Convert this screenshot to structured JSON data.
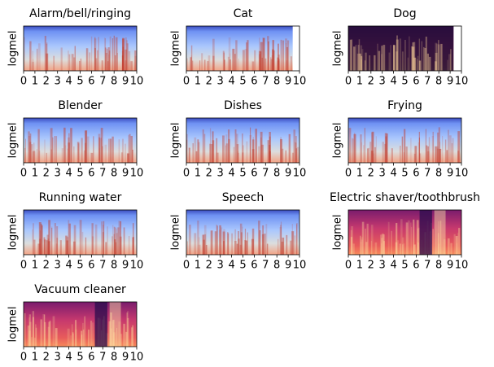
{
  "chart_data": [
    {
      "type": "spectrogram",
      "title": "Alarm/bell/ringing",
      "ylabel": "logmel",
      "xlim": [
        0,
        10
      ],
      "xticks": [
        0,
        1,
        2,
        3,
        4,
        5,
        6,
        7,
        8,
        9,
        10
      ],
      "duration": 10,
      "colormap": "coolwarm"
    },
    {
      "type": "spectrogram",
      "title": "Cat",
      "ylabel": "logmel",
      "xlim": [
        0,
        10
      ],
      "xticks": [
        0,
        1,
        2,
        3,
        4,
        5,
        6,
        7,
        8,
        9,
        10
      ],
      "duration": 9.4,
      "colormap": "coolwarm"
    },
    {
      "type": "spectrogram",
      "title": "Dog",
      "ylabel": "logmel",
      "xlim": [
        0,
        10
      ],
      "xticks": [
        0,
        1,
        2,
        3,
        4,
        5,
        6,
        7,
        8,
        9,
        10
      ],
      "duration": 9.3,
      "colormap": "magma"
    },
    {
      "type": "spectrogram",
      "title": "Blender",
      "ylabel": "logmel",
      "xlim": [
        0,
        10
      ],
      "xticks": [
        0,
        1,
        2,
        3,
        4,
        5,
        6,
        7,
        8,
        9,
        10
      ],
      "duration": 10,
      "colormap": "coolwarm"
    },
    {
      "type": "spectrogram",
      "title": "Dishes",
      "ylabel": "logmel",
      "xlim": [
        0,
        10
      ],
      "xticks": [
        0,
        1,
        2,
        3,
        4,
        5,
        6,
        7,
        8,
        9,
        10
      ],
      "duration": 10,
      "colormap": "coolwarm"
    },
    {
      "type": "spectrogram",
      "title": "Frying",
      "ylabel": "logmel",
      "xlim": [
        0,
        10
      ],
      "xticks": [
        0,
        1,
        2,
        3,
        4,
        5,
        6,
        7,
        8,
        9,
        10
      ],
      "duration": 10,
      "colormap": "coolwarm"
    },
    {
      "type": "spectrogram",
      "title": "Running water",
      "ylabel": "logmel",
      "xlim": [
        0,
        10
      ],
      "xticks": [
        0,
        1,
        2,
        3,
        4,
        5,
        6,
        7,
        8,
        9,
        10
      ],
      "duration": 10,
      "colormap": "coolwarm"
    },
    {
      "type": "spectrogram",
      "title": "Speech",
      "ylabel": "logmel",
      "xlim": [
        0,
        10
      ],
      "xticks": [
        0,
        1,
        2,
        3,
        4,
        5,
        6,
        7,
        8,
        9,
        10
      ],
      "duration": 10,
      "colormap": "coolwarm"
    },
    {
      "type": "spectrogram",
      "title": "Electric shaver/toothbrush",
      "ylabel": "logmel",
      "xlim": [
        0,
        10
      ],
      "xticks": [
        0,
        1,
        2,
        3,
        4,
        5,
        6,
        7,
        8,
        9,
        10
      ],
      "duration": 10,
      "colormap": "magma"
    },
    {
      "type": "spectrogram",
      "title": "Vacuum cleaner",
      "ylabel": "logmel",
      "xlim": [
        0,
        10
      ],
      "xticks": [
        0,
        1,
        2,
        3,
        4,
        5,
        6,
        7,
        8,
        9,
        10
      ],
      "duration": 10,
      "colormap": "magma"
    }
  ]
}
